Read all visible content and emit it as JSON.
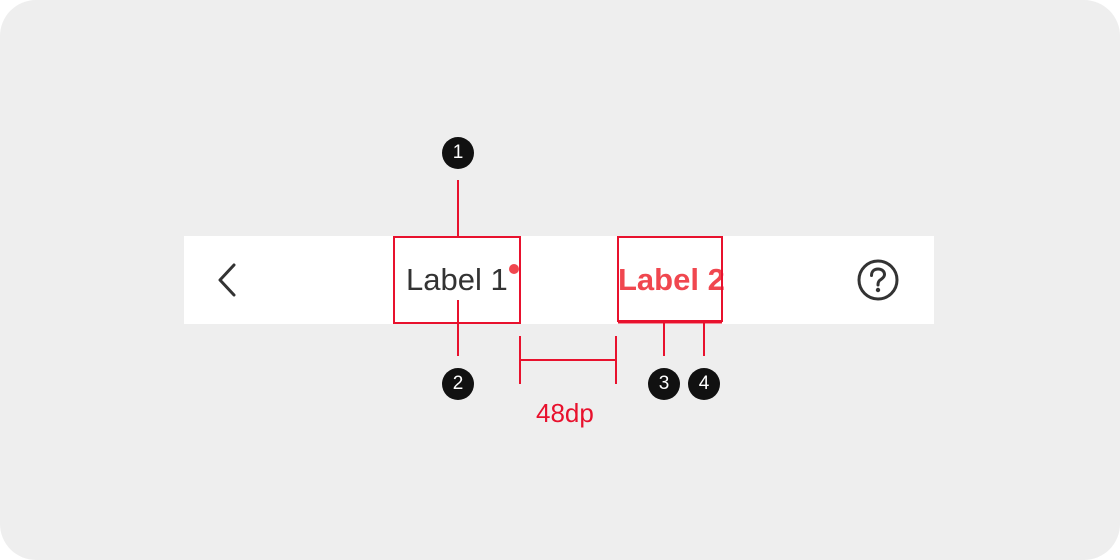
{
  "tabs": [
    {
      "label": "Label 1",
      "selected": false,
      "has_badge": true
    },
    {
      "label": "Label 2",
      "selected": true,
      "has_badge": false
    }
  ],
  "icons": {
    "back": "chevron-left-icon",
    "help": "help-circle-icon"
  },
  "annotations": {
    "markers": [
      "1",
      "2",
      "3",
      "4"
    ],
    "spacing_label": "48dp"
  },
  "colors": {
    "background": "#eeeeee",
    "bar": "#ffffff",
    "annotation": "#e8112d",
    "selected_tab": "#f0474f",
    "unselected_tab": "#333333",
    "marker": "#111111"
  }
}
